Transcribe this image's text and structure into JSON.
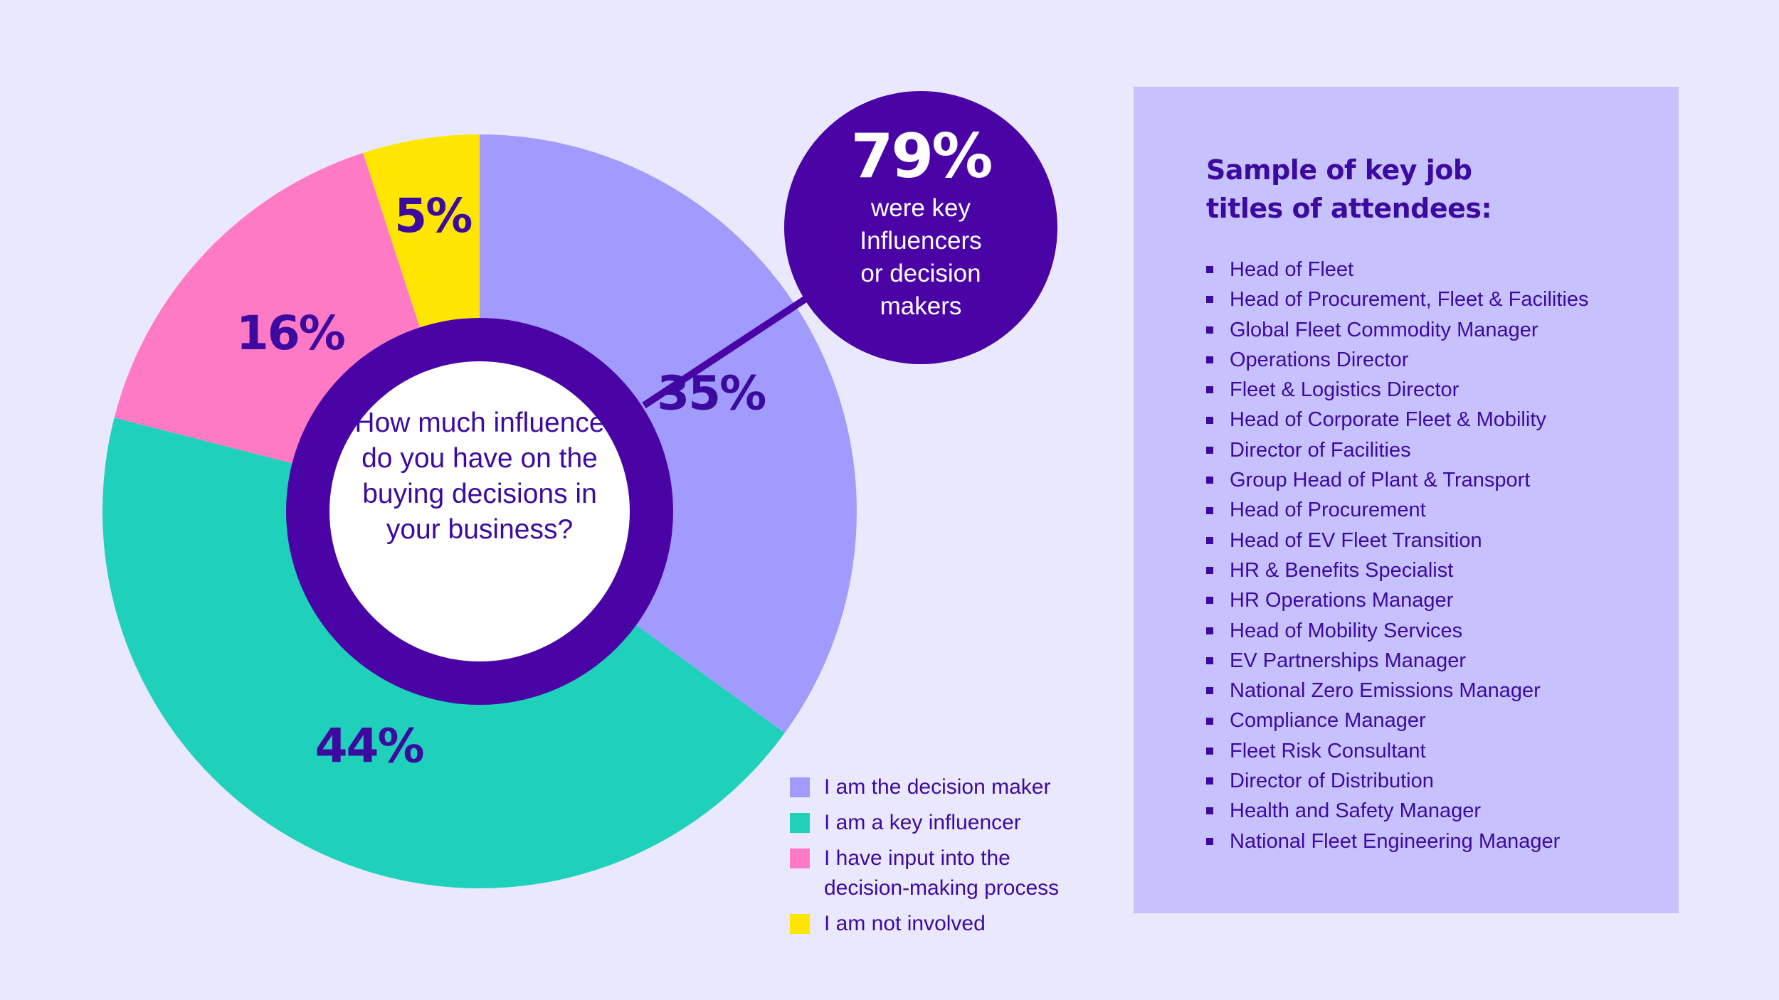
{
  "chart_data": {
    "type": "pie",
    "title": "How much influence do you have on the buying decisions in your business?",
    "slices": [
      {
        "label": "I am the decision maker",
        "value": 35,
        "display": "35%",
        "color": "#a29bfe"
      },
      {
        "label": "I am a key influencer",
        "value": 44,
        "display": "44%",
        "color": "#1fd1bb"
      },
      {
        "label": "I have input into the decision-making process",
        "value": 16,
        "display": "16%",
        "color": "#ff7ac5"
      },
      {
        "label": "I am not involved",
        "value": 5,
        "display": "5%",
        "color": "#ffe600"
      }
    ],
    "inner_ring_color": "#4a04a6",
    "legend_position": "bottom-right"
  },
  "callout": {
    "value": "79%",
    "lines": [
      "were key",
      "Influencers",
      "or decision",
      "makers"
    ]
  },
  "legend": {
    "items": [
      {
        "label": "I am the decision maker",
        "color": "#a29bfe"
      },
      {
        "label": "I am a key influencer",
        "color": "#1fd1bb"
      },
      {
        "label": "I have input into the decision-making process",
        "color": "#ff7ac5"
      },
      {
        "label": "I am not involved",
        "color": "#ffe600"
      }
    ]
  },
  "panel": {
    "title": "Sample of key job titles of attendees:",
    "items": [
      "Head of Fleet",
      "Head of Procurement, Fleet & Facilities",
      "Global Fleet Commodity Manager",
      "Operations Director",
      "Fleet & Logistics Director",
      "Head of Corporate Fleet & Mobility",
      "Director of Facilities",
      "Group Head of Plant & Transport",
      "Head of Procurement",
      "Head of EV Fleet Transition",
      "HR & Benefits Specialist",
      "HR Operations Manager",
      "Head of Mobility Services",
      "EV Partnerships Manager",
      "National Zero Emissions Manager",
      "Compliance Manager",
      "Fleet Risk Consultant",
      "Director of Distribution",
      "Health and Safety Manager",
      "National Fleet Engineering Manager"
    ]
  }
}
